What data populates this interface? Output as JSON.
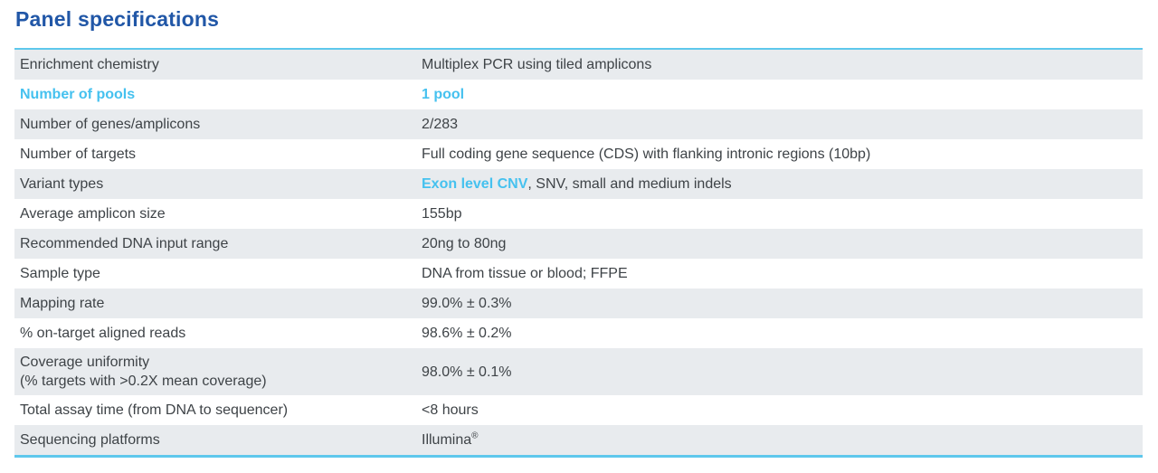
{
  "title": "Panel specifications",
  "colors": {
    "title_blue": "#2157a7",
    "accent_cyan": "#45c1ef",
    "row_shade_gray": "#e8ebee",
    "table_border_blue": "#5ec8ec",
    "body_text": "#3e4347"
  },
  "table": {
    "rows": [
      {
        "label": "Enrichment chemistry",
        "shaded": true,
        "accent_label": false,
        "value": [
          {
            "text": "Multiplex PCR using tiled amplicons",
            "accent": false
          }
        ]
      },
      {
        "label": "Number of pools",
        "shaded": false,
        "accent_label": true,
        "value": [
          {
            "text": "1 pool",
            "accent": true
          }
        ]
      },
      {
        "label": "Number of genes/amplicons",
        "shaded": true,
        "accent_label": false,
        "value": [
          {
            "text": "2/283",
            "accent": false
          }
        ]
      },
      {
        "label": "Number of targets",
        "shaded": false,
        "accent_label": false,
        "value": [
          {
            "text": "Full coding gene sequence (CDS) with flanking intronic regions (10bp)",
            "accent": false
          }
        ]
      },
      {
        "label": "Variant types",
        "shaded": true,
        "accent_label": false,
        "value": [
          {
            "text": "Exon level CNV",
            "accent": true
          },
          {
            "text": ", SNV, small and medium indels",
            "accent": false
          }
        ]
      },
      {
        "label": "Average amplicon size",
        "shaded": false,
        "accent_label": false,
        "value": [
          {
            "text": "155bp",
            "accent": false
          }
        ]
      },
      {
        "label": "Recommended DNA input range",
        "shaded": true,
        "accent_label": false,
        "value": [
          {
            "text": "20ng to 80ng",
            "accent": false
          }
        ]
      },
      {
        "label": "Sample type",
        "shaded": false,
        "accent_label": false,
        "value": [
          {
            "text": "DNA from tissue or blood; FFPE",
            "accent": false
          }
        ]
      },
      {
        "label": "Mapping rate",
        "shaded": true,
        "accent_label": false,
        "value": [
          {
            "text": "99.0% ± 0.3%",
            "accent": false
          }
        ]
      },
      {
        "label": "% on-target aligned reads",
        "shaded": false,
        "accent_label": false,
        "value": [
          {
            "text": "98.6% ± 0.2%",
            "accent": false
          }
        ]
      },
      {
        "label": "Coverage uniformity",
        "label_line2": "(% targets with >0.2X mean coverage)",
        "shaded": true,
        "accent_label": false,
        "value": [
          {
            "text": "98.0% ± 0.1%",
            "accent": false
          }
        ]
      },
      {
        "label": "Total assay time (from DNA to sequencer)",
        "shaded": false,
        "accent_label": false,
        "value": [
          {
            "text": "<8 hours",
            "accent": false
          }
        ]
      },
      {
        "label": "Sequencing platforms",
        "shaded": true,
        "accent_label": false,
        "value": [
          {
            "text": "Illumina",
            "accent": false,
            "sup": "®"
          }
        ]
      }
    ]
  }
}
